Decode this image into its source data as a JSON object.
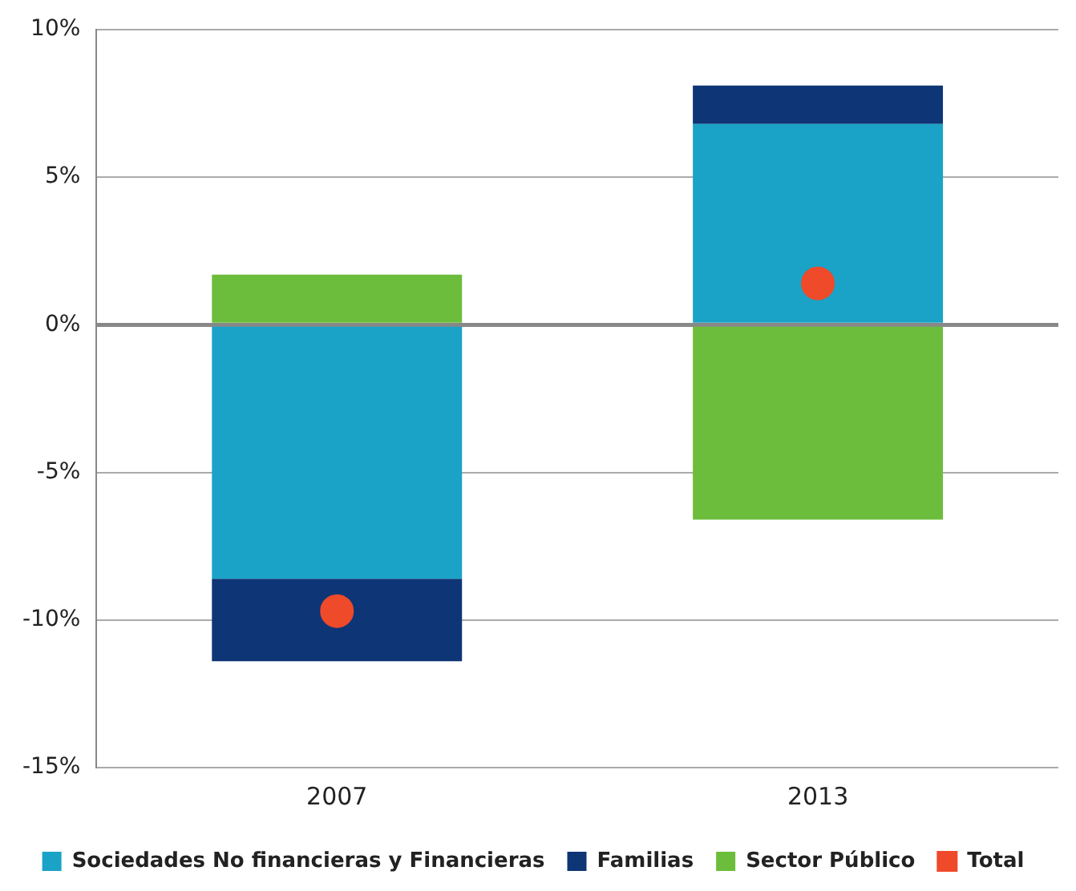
{
  "chart_data": {
    "type": "bar",
    "stacked": true,
    "categories": [
      "2007",
      "2013"
    ],
    "series": [
      {
        "name": "Sociedades No financieras y Financieras",
        "color": "#1aa3c6",
        "values": [
          -8.6,
          6.8
        ]
      },
      {
        "name": "Familias",
        "color": "#0e3576",
        "values": [
          -2.8,
          1.3
        ]
      },
      {
        "name": "Sector Público",
        "color": "#6cbd3c",
        "values": [
          1.7,
          -6.6
        ]
      },
      {
        "name": "Total",
        "type": "scatter",
        "color": "#ef4a2a",
        "values": [
          -9.7,
          1.4
        ]
      }
    ],
    "ylim": [
      -15,
      10
    ],
    "yticks": [
      {
        "value": -15,
        "label": "-15%"
      },
      {
        "value": -10,
        "label": "-10%"
      },
      {
        "value": -5,
        "label": "-5%"
      },
      {
        "value": 0,
        "label": "0%"
      },
      {
        "value": 5,
        "label": "5%"
      },
      {
        "value": 10,
        "label": "10%"
      }
    ],
    "grid": "y",
    "legend": "bottom"
  }
}
